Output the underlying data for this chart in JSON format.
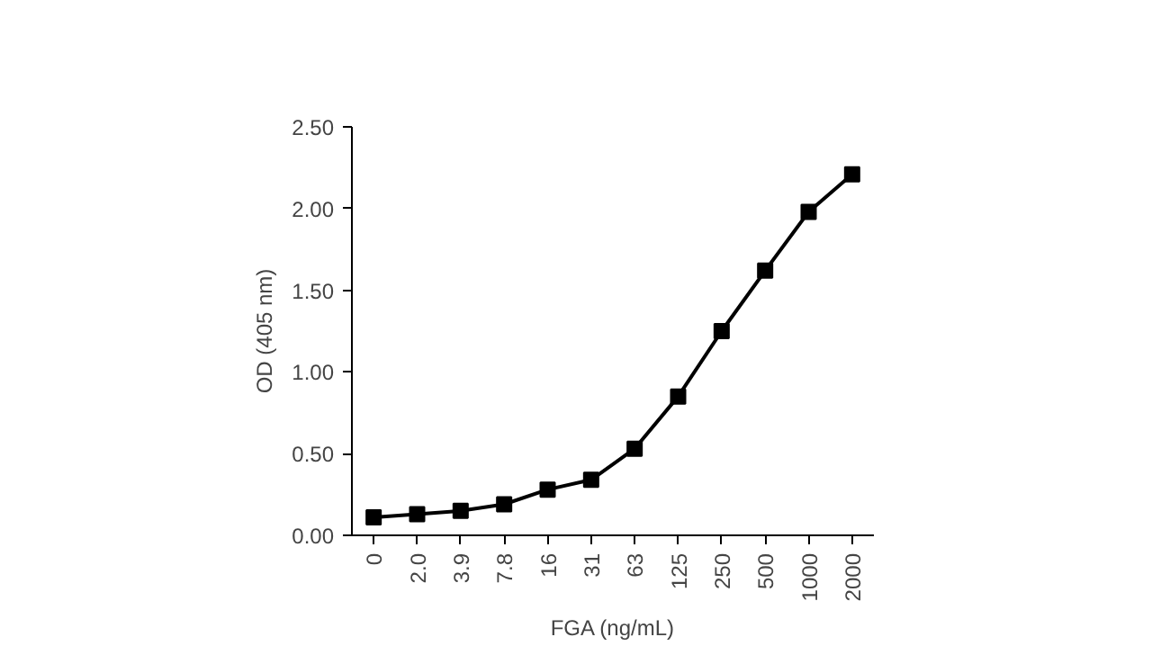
{
  "chart_data": {
    "type": "line",
    "xlabel": "FGA (ng/mL)",
    "ylabel": "OD (405 nm)",
    "categories": [
      "0",
      "2.0",
      "3.9",
      "7.8",
      "16",
      "31",
      "63",
      "125",
      "250",
      "500",
      "1000",
      "2000"
    ],
    "values": [
      0.11,
      0.13,
      0.15,
      0.19,
      0.28,
      0.34,
      0.53,
      0.85,
      1.25,
      1.62,
      1.98,
      2.21
    ],
    "color": "#000000",
    "marker": "square",
    "line_style": "solid",
    "ylim": [
      0,
      2.5
    ],
    "yticks": [
      {
        "value": 0,
        "label": "0.00"
      },
      {
        "value": 0.5,
        "label": "0.50"
      },
      {
        "value": 1,
        "label": "1.00"
      },
      {
        "value": 1.5,
        "label": "1.50"
      },
      {
        "value": 2,
        "label": "2.00"
      },
      {
        "value": 2.5,
        "label": "2.50"
      }
    ],
    "grid": false
  }
}
